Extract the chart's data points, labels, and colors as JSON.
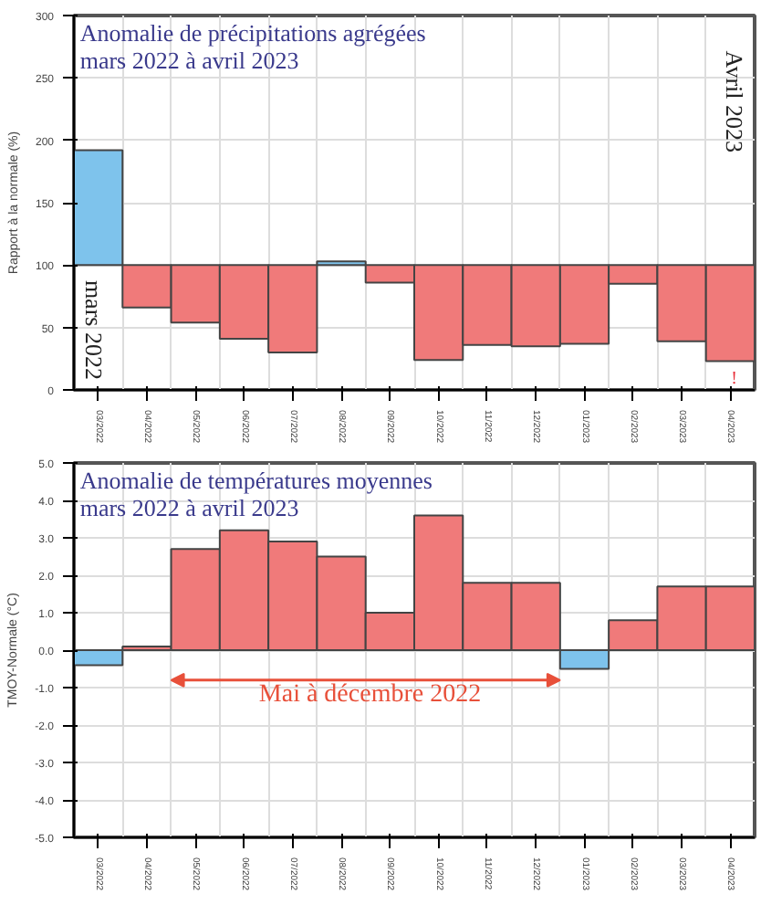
{
  "chart_data": [
    {
      "type": "bar",
      "title": "Anomalie de précipitations agrégées\nmars 2022 à avril 2023",
      "ylabel": "Rapport à la normale (%)",
      "categories": [
        "03/2022",
        "04/2022",
        "05/2022",
        "06/2022",
        "07/2022",
        "08/2022",
        "09/2022",
        "10/2022",
        "11/2022",
        "12/2022",
        "01/2023",
        "02/2023",
        "03/2023",
        "04/2023"
      ],
      "base": [
        100,
        100,
        100,
        100,
        100,
        100,
        100,
        100,
        100,
        100,
        100,
        100,
        100,
        100
      ],
      "values": [
        92,
        -34,
        -46,
        -59,
        -70,
        3,
        -14,
        -76,
        -64,
        -65,
        -63,
        -15,
        -61,
        -77
      ],
      "colors": [
        "#7ec3ec",
        "#f07a7a",
        "#f07a7a",
        "#f07a7a",
        "#f07a7a",
        "#7ec3ec",
        "#f07a7a",
        "#f07a7a",
        "#f07a7a",
        "#f07a7a",
        "#f07a7a",
        "#f07a7a",
        "#f07a7a",
        "#f07a7a"
      ],
      "ylim": [
        0,
        300
      ],
      "yticks": [
        0,
        50,
        100,
        150,
        200,
        250,
        300
      ],
      "grid": true,
      "annotations": [
        "mars 2022",
        "Avril 2023",
        "!"
      ]
    },
    {
      "type": "bar",
      "title": "Anomalie de températures moyennes\nmars 2022 à avril 2023",
      "ylabel": "TMOY-Normale (°C)",
      "categories": [
        "03/2022",
        "04/2022",
        "05/2022",
        "06/2022",
        "07/2022",
        "08/2022",
        "09/2022",
        "10/2022",
        "11/2022",
        "12/2022",
        "01/2023",
        "02/2023",
        "03/2023",
        "04/2023"
      ],
      "values": [
        -0.4,
        0.1,
        2.7,
        3.2,
        2.9,
        2.5,
        1.0,
        3.6,
        1.8,
        1.8,
        -0.5,
        0.8,
        1.7,
        1.7
      ],
      "colors": [
        "#7ec3ec",
        "#f07a7a",
        "#f07a7a",
        "#f07a7a",
        "#f07a7a",
        "#f07a7a",
        "#f07a7a",
        "#f07a7a",
        "#f07a7a",
        "#f07a7a",
        "#7ec3ec",
        "#f07a7a",
        "#f07a7a",
        "#f07a7a"
      ],
      "ylim": [
        -5,
        5
      ],
      "yticks": [
        {
          "value": -5,
          "label": "-5.0"
        },
        {
          "value": -4,
          "label": "-4.0"
        },
        {
          "value": -3,
          "label": "-3.0"
        },
        {
          "value": -2,
          "label": "-2.0"
        },
        {
          "value": -1,
          "label": "-1.0"
        },
        {
          "value": 0,
          "label": "0.0"
        },
        {
          "value": 1,
          "label": "1.0"
        },
        {
          "value": 2,
          "label": "2.0"
        },
        {
          "value": 3,
          "label": "3.0"
        },
        {
          "value": 4,
          "label": "4.0"
        },
        {
          "value": 5,
          "label": "5.0"
        }
      ],
      "grid": true,
      "annotations": [
        "Mai à décembre 2022"
      ]
    }
  ]
}
